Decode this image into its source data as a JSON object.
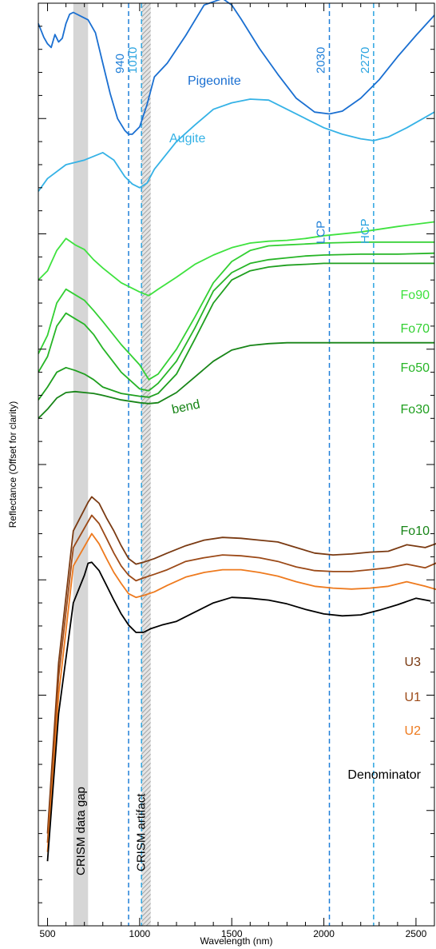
{
  "chart_data": {
    "type": "line",
    "title": "",
    "xlabel": "Wavelength (nm)",
    "ylabel": "Reflectance (Offset for clarity)",
    "xlim": [
      450,
      2600
    ],
    "ylim": [
      0,
      1.0
    ],
    "grid": false,
    "x_ticks": [
      500,
      1000,
      1500,
      2000,
      2500
    ],
    "x_tick_labels": [
      "500",
      "1000",
      "1500",
      "2000",
      "2500"
    ],
    "y_ticks_show_labels": false,
    "vlines": [
      {
        "x": 940,
        "label": "940",
        "color": "#1f7fd8"
      },
      {
        "x": 1010,
        "label": "1010",
        "color": "#2aa4e0"
      },
      {
        "x": 2030,
        "label": "2030",
        "color": "#1f7fd8",
        "annotation": "LCP"
      },
      {
        "x": 2270,
        "label": "2270",
        "color": "#2aa4e0",
        "annotation": "HCP"
      }
    ],
    "regions": [
      {
        "x0": 640,
        "x1": 720,
        "label": "CRISM data gap",
        "style": "gray"
      },
      {
        "x0": 1010,
        "x1": 1060,
        "label": "CRISM artifact",
        "style": "hatched"
      }
    ],
    "series": [
      {
        "name": "Pigeonite",
        "color": "#1a6fd1",
        "x": [
          450,
          480,
          500,
          520,
          540,
          560,
          580,
          600,
          620,
          640,
          680,
          720,
          760,
          800,
          840,
          880,
          920,
          940,
          960,
          1000,
          1040,
          1080,
          1150,
          1250,
          1350,
          1450,
          1500,
          1550,
          1650,
          1750,
          1850,
          1950,
          2030,
          2100,
          2200,
          2300,
          2400,
          2500,
          2600
        ],
        "y": [
          0.978,
          0.963,
          0.956,
          0.952,
          0.966,
          0.958,
          0.962,
          0.978,
          0.988,
          0.99,
          0.986,
          0.982,
          0.968,
          0.935,
          0.902,
          0.875,
          0.862,
          0.858,
          0.858,
          0.866,
          0.89,
          0.92,
          0.935,
          0.965,
          0.998,
          1.005,
          0.998,
          0.983,
          0.951,
          0.923,
          0.897,
          0.882,
          0.88,
          0.883,
          0.897,
          0.917,
          0.942,
          0.965,
          0.987
        ]
      },
      {
        "name": "Augite",
        "color": "#35b2e6",
        "x": [
          450,
          500,
          600,
          700,
          800,
          860,
          920,
          960,
          1000,
          1040,
          1080,
          1200,
          1300,
          1400,
          1500,
          1600,
          1700,
          1800,
          1900,
          2000,
          2100,
          2200,
          2270,
          2350,
          2450,
          2600
        ],
        "y": [
          0.796,
          0.81,
          0.825,
          0.83,
          0.838,
          0.83,
          0.812,
          0.804,
          0.8,
          0.805,
          0.82,
          0.85,
          0.868,
          0.885,
          0.892,
          0.896,
          0.895,
          0.885,
          0.875,
          0.865,
          0.858,
          0.853,
          0.851,
          0.855,
          0.865,
          0.882
        ]
      },
      {
        "name": "Fo90",
        "color": "#3fe23f",
        "x": [
          450,
          500,
          550,
          600,
          650,
          700,
          750,
          800,
          900,
          1000,
          1050,
          1100,
          1200,
          1300,
          1400,
          1500,
          1600,
          1700,
          1800,
          1900,
          2000,
          2200,
          2400,
          2600
        ],
        "y": [
          0.7,
          0.71,
          0.732,
          0.745,
          0.738,
          0.733,
          0.722,
          0.713,
          0.697,
          0.687,
          0.683,
          0.69,
          0.703,
          0.717,
          0.727,
          0.735,
          0.74,
          0.742,
          0.743,
          0.745,
          0.748,
          0.752,
          0.758,
          0.763
        ]
      },
      {
        "name": "Fo70",
        "color": "#33d033",
        "x": [
          450,
          500,
          550,
          600,
          650,
          700,
          750,
          800,
          900,
          1000,
          1050,
          1100,
          1200,
          1300,
          1400,
          1500,
          1600,
          1700,
          1800,
          1900,
          2000,
          2200,
          2400,
          2600
        ],
        "y": [
          0.62,
          0.64,
          0.675,
          0.69,
          0.684,
          0.678,
          0.667,
          0.655,
          0.63,
          0.608,
          0.592,
          0.598,
          0.625,
          0.66,
          0.697,
          0.72,
          0.732,
          0.737,
          0.738,
          0.739,
          0.74,
          0.741,
          0.741,
          0.741
        ]
      },
      {
        "name": "Fo50",
        "color": "#27b527",
        "x": [
          450,
          500,
          550,
          600,
          650,
          700,
          750,
          800,
          900,
          1000,
          1050,
          1100,
          1200,
          1300,
          1400,
          1500,
          1600,
          1700,
          1800,
          1900,
          2000,
          2200,
          2400,
          2600
        ],
        "y": [
          0.6,
          0.617,
          0.65,
          0.664,
          0.658,
          0.652,
          0.641,
          0.626,
          0.6,
          0.582,
          0.58,
          0.588,
          0.612,
          0.648,
          0.688,
          0.708,
          0.718,
          0.722,
          0.724,
          0.726,
          0.727,
          0.728,
          0.728,
          0.729
        ]
      },
      {
        "name": "Fo30",
        "color": "#1f9f1f",
        "x": [
          450,
          500,
          550,
          600,
          650,
          700,
          750,
          800,
          900,
          1000,
          1050,
          1100,
          1200,
          1300,
          1400,
          1500,
          1600,
          1700,
          1800,
          1900,
          2000,
          2200,
          2400,
          2600
        ],
        "y": [
          0.57,
          0.584,
          0.6,
          0.605,
          0.602,
          0.598,
          0.592,
          0.584,
          0.577,
          0.574,
          0.573,
          0.577,
          0.598,
          0.636,
          0.675,
          0.7,
          0.71,
          0.714,
          0.716,
          0.717,
          0.718,
          0.718,
          0.718,
          0.718
        ]
      },
      {
        "name": "Fo10",
        "color": "#188518",
        "x": [
          450,
          500,
          550,
          600,
          650,
          700,
          750,
          800,
          900,
          1000,
          1050,
          1100,
          1200,
          1300,
          1400,
          1500,
          1600,
          1700,
          1800,
          1900,
          2000,
          2200,
          2400,
          2600
        ],
        "y": [
          0.55,
          0.56,
          0.572,
          0.578,
          0.579,
          0.578,
          0.577,
          0.575,
          0.57,
          0.567,
          0.566,
          0.567,
          0.578,
          0.595,
          0.612,
          0.624,
          0.629,
          0.631,
          0.632,
          0.632,
          0.632,
          0.632,
          0.632,
          0.632
        ]
      },
      {
        "name": "U3",
        "color": "#7a3a12",
        "x": [
          500,
          560,
          640,
          720,
          740,
          780,
          820,
          860,
          900,
          940,
          980,
          1020,
          1080,
          1150,
          1250,
          1350,
          1450,
          1550,
          1650,
          1750,
          1850,
          1950,
          2050,
          2150,
          2250,
          2350,
          2450,
          2550,
          2620
        ],
        "y": [
          0.1,
          0.285,
          0.428,
          0.459,
          0.465,
          0.458,
          0.442,
          0.428,
          0.412,
          0.398,
          0.392,
          0.394,
          0.398,
          0.404,
          0.412,
          0.418,
          0.421,
          0.42,
          0.418,
          0.416,
          0.41,
          0.404,
          0.402,
          0.403,
          0.405,
          0.406,
          0.413,
          0.41,
          0.415
        ]
      },
      {
        "name": "U1",
        "color": "#9c4a18",
        "x": [
          500,
          560,
          640,
          720,
          740,
          780,
          820,
          860,
          900,
          940,
          980,
          1020,
          1080,
          1150,
          1250,
          1350,
          1450,
          1550,
          1650,
          1750,
          1850,
          1950,
          2050,
          2150,
          2250,
          2350,
          2450,
          2550,
          2620
        ],
        "y": [
          0.09,
          0.27,
          0.41,
          0.438,
          0.445,
          0.436,
          0.42,
          0.404,
          0.39,
          0.38,
          0.374,
          0.377,
          0.381,
          0.386,
          0.395,
          0.399,
          0.402,
          0.401,
          0.399,
          0.395,
          0.389,
          0.385,
          0.384,
          0.384,
          0.386,
          0.388,
          0.392,
          0.388,
          0.394
        ]
      },
      {
        "name": "U2",
        "color": "#ee7a1e",
        "x": [
          500,
          560,
          640,
          720,
          740,
          780,
          820,
          860,
          900,
          940,
          980,
          1020,
          1080,
          1150,
          1250,
          1350,
          1450,
          1550,
          1650,
          1750,
          1850,
          1950,
          2050,
          2150,
          2250,
          2350,
          2450,
          2550,
          2620
        ],
        "y": [
          0.08,
          0.25,
          0.39,
          0.418,
          0.425,
          0.414,
          0.398,
          0.383,
          0.371,
          0.36,
          0.356,
          0.358,
          0.362,
          0.369,
          0.378,
          0.383,
          0.386,
          0.386,
          0.383,
          0.379,
          0.373,
          0.368,
          0.366,
          0.365,
          0.366,
          0.368,
          0.373,
          0.368,
          0.364
        ]
      },
      {
        "name": "Denominator",
        "color": "#000000",
        "x": [
          500,
          560,
          640,
          700,
          720,
          740,
          780,
          820,
          860,
          900,
          940,
          980,
          1020,
          1060,
          1120,
          1200,
          1300,
          1400,
          1500,
          1600,
          1700,
          1800,
          1900,
          2000,
          2100,
          2200,
          2300,
          2400,
          2500,
          2580
        ],
        "y": [
          0.07,
          0.23,
          0.35,
          0.38,
          0.393,
          0.394,
          0.385,
          0.369,
          0.353,
          0.338,
          0.326,
          0.318,
          0.318,
          0.322,
          0.326,
          0.33,
          0.34,
          0.35,
          0.356,
          0.355,
          0.353,
          0.349,
          0.343,
          0.338,
          0.336,
          0.337,
          0.342,
          0.348,
          0.355,
          0.352
        ]
      }
    ],
    "annotations": [
      {
        "text": "bend",
        "x": 1180,
        "y": 0.555,
        "color": "#188518"
      }
    ]
  }
}
